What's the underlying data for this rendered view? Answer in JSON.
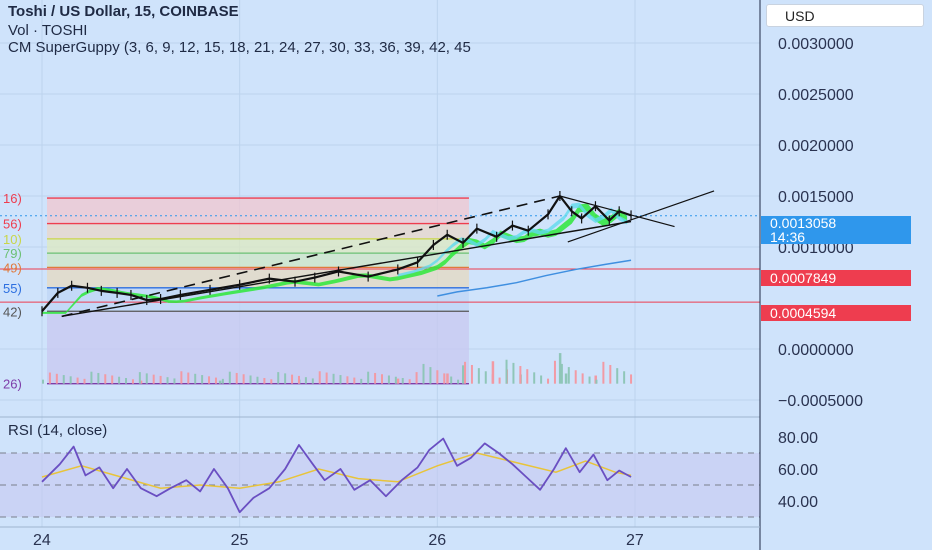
{
  "header": {
    "title": "Toshi / US Dollar, 15, COINBASE",
    "vol": "Vol · TOSHI",
    "indicator": "CM SuperGuppy (3, 6, 9, 12, 15, 18, 21, 24, 27, 30, 33, 36, 39, 42, 45"
  },
  "currency_button": "USD",
  "price_tags": {
    "current_price": "0.0013058",
    "countdown": "14:36",
    "level_1": "0.0007849",
    "level_2": "0.0004594"
  },
  "fib_labels": [
    "16)",
    "56)",
    "10)",
    "79)",
    "49)",
    "55)",
    "42)",
    "26)"
  ],
  "rsi_title": "RSI (14, close)",
  "colors": {
    "background": "#cfe3fb",
    "candles": "#111111",
    "ribbon_green": "#2ee83a",
    "ribbon_cyan": "#5fd9ee",
    "sma_blue": "#3f8fe0",
    "red_line": "#ee3d4f",
    "rsi_line": "#6a4fc2",
    "rsi_ma": "#e8c43a"
  },
  "chart_data": [
    {
      "type": "line",
      "x_ticks": [
        "24",
        "25",
        "26",
        "27"
      ],
      "y_ticks": [
        "0.0030000",
        "0.0025000",
        "0.0020000",
        "0.0015000",
        "0.0010000",
        "0.0000000",
        "−0.0005000"
      ],
      "ylim": [
        -0.0005,
        0.00335
      ],
      "fib_levels": [
        0.00148,
        0.00123,
        0.00108,
        0.00094,
        0.0008,
        0.0006,
        0.00037,
        -0.00034
      ],
      "horizontal_lines": [
        0.0007849,
        0.0004594
      ],
      "price": [
        [
          0.0,
          0.00037
        ],
        [
          0.8,
          0.00055
        ],
        [
          1.5,
          0.00062
        ],
        [
          2.3,
          0.0006
        ],
        [
          3.0,
          0.00057
        ],
        [
          3.8,
          0.00055
        ],
        [
          4.5,
          0.00053
        ],
        [
          5.3,
          0.00048
        ],
        [
          6.0,
          0.00049
        ],
        [
          7.0,
          0.00053
        ],
        [
          8.5,
          0.00058
        ],
        [
          10.0,
          0.00063
        ],
        [
          11.5,
          0.00069
        ],
        [
          12.8,
          0.00066
        ],
        [
          13.8,
          0.0007
        ],
        [
          15.0,
          0.00076
        ],
        [
          16.5,
          0.00071
        ],
        [
          18.0,
          0.00078
        ],
        [
          19.0,
          0.00085
        ],
        [
          19.8,
          0.00102
        ],
        [
          20.5,
          0.00112
        ],
        [
          21.3,
          0.00104
        ],
        [
          22.0,
          0.00118
        ],
        [
          23.0,
          0.0011
        ],
        [
          23.8,
          0.00121
        ],
        [
          24.6,
          0.00116
        ],
        [
          25.6,
          0.00132
        ],
        [
          26.2,
          0.0015
        ],
        [
          26.8,
          0.00135
        ],
        [
          27.3,
          0.00128
        ],
        [
          28.0,
          0.0014
        ],
        [
          28.7,
          0.00126
        ],
        [
          29.2,
          0.00135
        ],
        [
          29.8,
          0.00131
        ]
      ],
      "sma": [
        [
          20.0,
          0.00052
        ],
        [
          21.0,
          0.00056
        ],
        [
          22.5,
          0.0006
        ],
        [
          24.0,
          0.00065
        ],
        [
          25.5,
          0.00072
        ],
        [
          27.0,
          0.00078
        ],
        [
          28.5,
          0.00083
        ],
        [
          29.8,
          0.00087
        ]
      ],
      "trendline_upper": [
        [
          1.0,
          0.00032
        ],
        [
          26.2,
          0.0015
        ]
      ],
      "trendline_lower": [
        [
          1.0,
          0.00032
        ],
        [
          29.8,
          0.00125
        ]
      ],
      "triangle_upper": [
        [
          26.2,
          0.0015
        ],
        [
          32.0,
          0.0012
        ]
      ],
      "triangle_lower": [
        [
          26.6,
          0.00105
        ],
        [
          34.0,
          0.00155
        ]
      ],
      "volume": [
        [
          21.3,
          0.00018
        ],
        [
          22.8,
          0.00022
        ],
        [
          26.2,
          0.0003
        ],
        [
          23.5,
          0.00014
        ],
        [
          26.5,
          0.0001
        ],
        [
          20.5,
          0.0001
        ],
        [
          24.2,
          9e-05
        ],
        [
          28.0,
          8e-05
        ],
        [
          13.0,
          4e-05
        ],
        [
          18.0,
          5e-05
        ],
        [
          9.0,
          3e-05
        ],
        [
          5.0,
          3e-05
        ]
      ]
    },
    {
      "type": "line",
      "name": "RSI",
      "y_ticks": [
        "80.00",
        "60.00",
        "40.00"
      ],
      "ylim": [
        25,
        95
      ],
      "bands": [
        70,
        50,
        30
      ],
      "rsi": [
        [
          0.0,
          52
        ],
        [
          0.9,
          63
        ],
        [
          1.6,
          74
        ],
        [
          2.2,
          56
        ],
        [
          2.9,
          61
        ],
        [
          3.6,
          48
        ],
        [
          4.3,
          60
        ],
        [
          5.0,
          48
        ],
        [
          5.8,
          43
        ],
        [
          6.5,
          48
        ],
        [
          7.3,
          53
        ],
        [
          8.0,
          46
        ],
        [
          8.7,
          60
        ],
        [
          9.4,
          48
        ],
        [
          10.0,
          33
        ],
        [
          10.7,
          42
        ],
        [
          11.5,
          48
        ],
        [
          12.3,
          60
        ],
        [
          13.0,
          75
        ],
        [
          13.7,
          63
        ],
        [
          14.3,
          53
        ],
        [
          15.1,
          60
        ],
        [
          15.8,
          47
        ],
        [
          16.6,
          53
        ],
        [
          17.4,
          43
        ],
        [
          18.2,
          53
        ],
        [
          19.0,
          61
        ],
        [
          19.6,
          72
        ],
        [
          20.3,
          79
        ],
        [
          21.0,
          62
        ],
        [
          21.7,
          67
        ],
        [
          22.4,
          76
        ],
        [
          23.1,
          70
        ],
        [
          23.8,
          63
        ],
        [
          24.5,
          55
        ],
        [
          25.2,
          47
        ],
        [
          25.9,
          60
        ],
        [
          26.5,
          73
        ],
        [
          27.2,
          58
        ],
        [
          27.9,
          69
        ],
        [
          28.6,
          53
        ],
        [
          29.2,
          59
        ],
        [
          29.8,
          55
        ]
      ],
      "rsi_ma": [
        [
          0.0,
          55
        ],
        [
          2.0,
          62
        ],
        [
          4.0,
          55
        ],
        [
          6.0,
          48
        ],
        [
          8.0,
          50
        ],
        [
          10.0,
          48
        ],
        [
          12.0,
          52
        ],
        [
          14.0,
          60
        ],
        [
          16.0,
          54
        ],
        [
          18.0,
          52
        ],
        [
          20.0,
          62
        ],
        [
          22.0,
          70
        ],
        [
          24.0,
          64
        ],
        [
          26.0,
          58
        ],
        [
          27.5,
          65
        ],
        [
          29.0,
          58
        ],
        [
          29.8,
          56
        ]
      ]
    }
  ]
}
